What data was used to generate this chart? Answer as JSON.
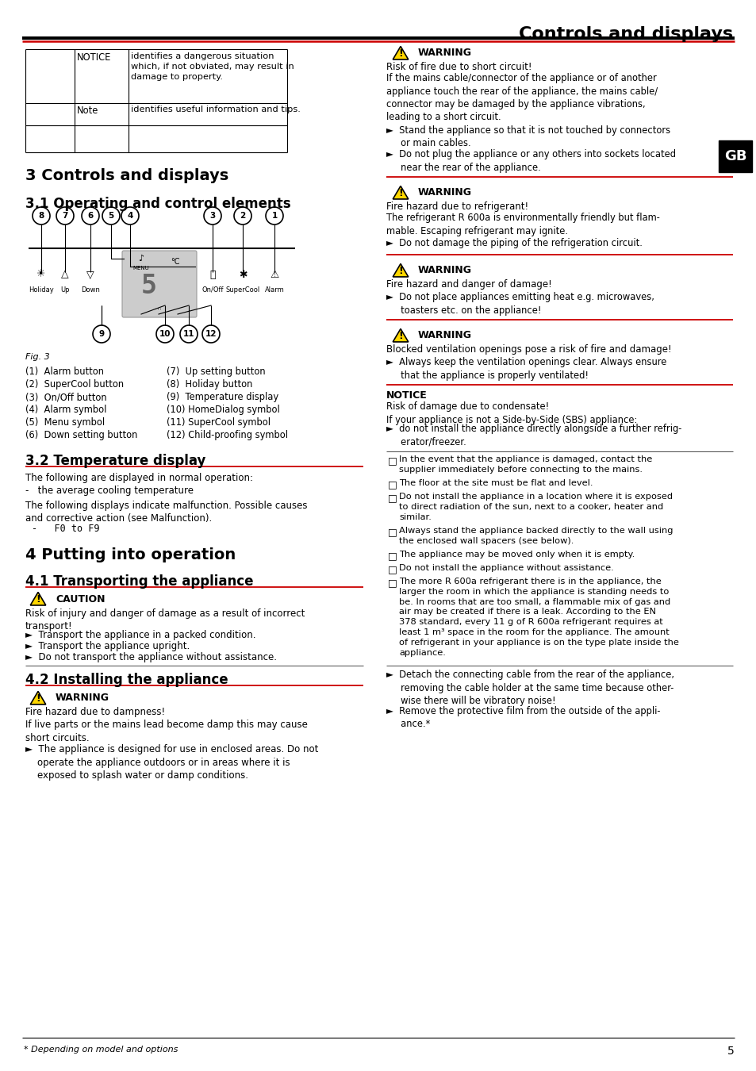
{
  "page_title": "Controls and displays",
  "red": "#cc0000",
  "black": "#000000",
  "white": "#ffffff",
  "yellow": "#FFD700",
  "grey": "#cccccc",
  "darkgrey": "#888888",
  "notice_r1_c1": "NOTICE",
  "notice_r1_c2": "identifies a dangerous situation\nwhich, if not obviated, may result in\ndamage to property.",
  "notice_r2_c1": "Note",
  "notice_r2_c2": "identifies useful information and tips.",
  "s3_title": "3 Controls and displays",
  "s31_title": "3.1 Operating and control elements",
  "fig_caption": "Fig. 3",
  "legend_left": [
    "(1)  Alarm button",
    "(2)  SuperCool button",
    "(3)  On/Off button",
    "(4)  Alarm symbol",
    "(5)  Menu symbol",
    "(6)  Down setting button"
  ],
  "legend_right": [
    "(7)  Up setting button",
    "(8)  Holiday button",
    "(9)  Temperature display",
    "(10) HomeDialog symbol",
    "(11) SuperCool symbol",
    "(12) Child-proofing symbol"
  ],
  "s32_title": "3.2 Temperature display",
  "s32_p1": "The following are displayed in normal operation:",
  "s32_b1": "-   the average cooling temperature",
  "s32_p2": "The following displays indicate malfunction. Possible causes\nand corrective action (see Malfunction).",
  "s32_b2": "-   F0 to F9",
  "s4_title": "4 Putting into operation",
  "s41_title": "4.1 Transporting the appliance",
  "s41_warn": "CAUTION",
  "s41_warn_body": "Risk of injury and danger of damage as a result of incorrect\ntransport!",
  "s41_bullets": [
    "►  Transport the appliance in a packed condition.",
    "►  Transport the appliance upright.",
    "►  Do not transport the appliance without assistance."
  ],
  "s42_title": "4.2 Installing the appliance",
  "s42_warn": "WARNING",
  "s42_warn_body": "Fire hazard due to dampness!\nIf live parts or the mains lead become damp this may cause\nshort circuits.",
  "s42_bullets": [
    "►  The appliance is designed for use in enclosed areas. Do not\n    operate the appliance outdoors or in areas where it is\n    exposed to splash water or damp conditions."
  ],
  "rw1_title": "WARNING",
  "rw1_sub": "Risk of fire due to short circuit!",
  "rw1_body": "If the mains cable/connector of the appliance or of another\nappliance touch the rear of the appliance, the mains cable/\nconnector may be damaged by the appliance vibrations,\nleading to a short circuit.",
  "rw1_b": [
    "►  Stand the appliance so that it is not touched by connectors\n     or main cables.",
    "►  Do not plug the appliance or any others into sockets located\n     near the rear of the appliance."
  ],
  "rw2_title": "WARNING",
  "rw2_sub": "Fire hazard due to refrigerant!",
  "rw2_body": "The refrigerant R 600a is environmentally friendly but flam-\nmable. Escaping refrigerant may ignite.",
  "rw2_b": [
    "►  Do not damage the piping of the refrigeration circuit."
  ],
  "rw3_title": "WARNING",
  "rw3_sub": "Fire hazard and danger of damage!",
  "rw3_b": [
    "►  Do not place appliances emitting heat e.g. microwaves,\n     toasters etc. on the appliance!"
  ],
  "rw4_title": "WARNING",
  "rw4_sub": "Blocked ventilation openings pose a risk of fire and damage!",
  "rw4_b": [
    "►  Always keep the ventilation openings clear. Always ensure\n     that the appliance is properly ventilated!"
  ],
  "rn_title": "NOTICE",
  "rn_sub": "Risk of damage due to condensate!\nIf your appliance is not a Side-by-Side (SBS) appliance:",
  "rn_b": [
    "►  do not install the appliance directly alongside a further refrig-\n     erator/freezer."
  ],
  "checklist": [
    "In the event that the appliance is damaged, contact the\nsupplier immediately before connecting to the mains.",
    "The floor at the site must be flat and level.",
    "Do not install the appliance in a location where it is exposed\nto direct radiation of the sun, next to a cooker, heater and\nsimilar.",
    "Always stand the appliance backed directly to the wall using\nthe enclosed wall spacers (see below).",
    "The appliance may be moved only when it is empty.",
    "Do not install the appliance without assistance.",
    "The more R 600a refrigerant there is in the appliance, the\nlarger the room in which the appliance is standing needs to\nbe. In rooms that are too small, a flammable mix of gas and\nair may be created if there is a leak. According to the EN\n378 standard, every 11 g of R 600a refrigerant requires at\nleast 1 m³ space in the room for the appliance. The amount\nof refrigerant in your appliance is on the type plate inside the\nappliance."
  ],
  "rb": [
    "►  Detach the connecting cable from the rear of the appliance,\n     removing the cable holder at the same time because other-\n     wise there will be vibratory noise!",
    "►  Remove the protective film from the outside of the appli-\n     ance.*"
  ],
  "footer_l": "* Depending on model and options",
  "footer_r": "5",
  "gb": "GB"
}
